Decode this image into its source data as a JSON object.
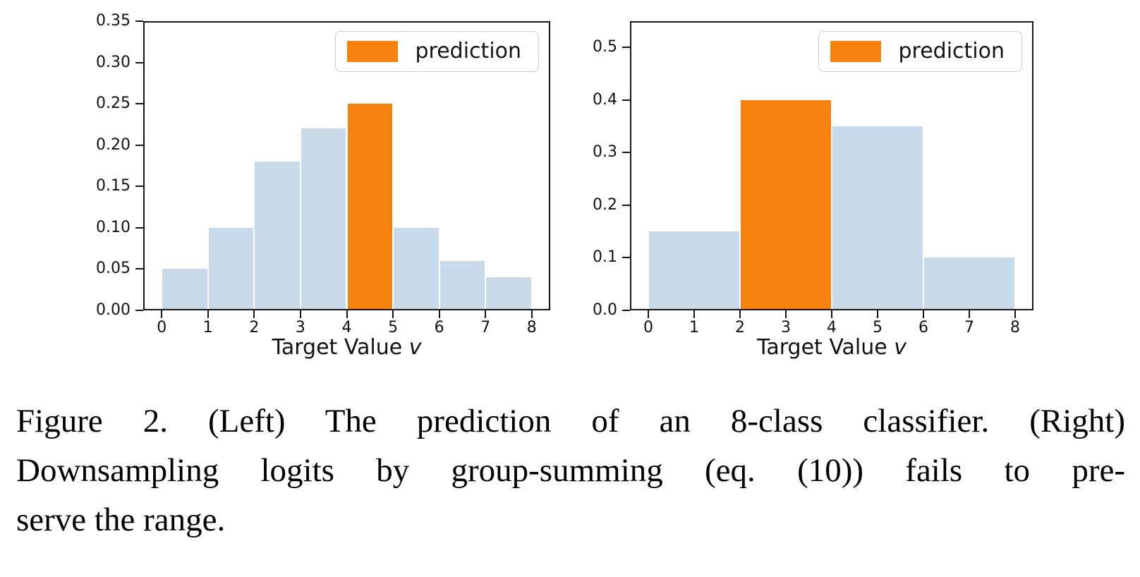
{
  "colors": {
    "bar": "#c8daea",
    "highlight": "#f5820d",
    "axis": "#151515"
  },
  "chart_data": [
    {
      "type": "bar",
      "title": "",
      "xlabel": "Target Value v",
      "xlabel_text": "Target Value ",
      "xlabel_var": "v",
      "ylabel": "",
      "legend_label": "prediction",
      "legend_position": "upper right",
      "grid": false,
      "bin_edges": [
        0,
        1,
        2,
        3,
        4,
        5,
        6,
        7,
        8
      ],
      "values": [
        0.05,
        0.1,
        0.18,
        0.22,
        0.25,
        0.1,
        0.06,
        0.04
      ],
      "highlight_index": 4,
      "xlim": [
        -0.4,
        8.4
      ],
      "ylim": [
        0,
        0.35
      ],
      "yticks": [
        {
          "v": 0.0,
          "label": "0.00"
        },
        {
          "v": 0.05,
          "label": "0.05"
        },
        {
          "v": 0.1,
          "label": "0.10"
        },
        {
          "v": 0.15,
          "label": "0.15"
        },
        {
          "v": 0.2,
          "label": "0.20"
        },
        {
          "v": 0.25,
          "label": "0.25"
        },
        {
          "v": 0.3,
          "label": "0.30"
        },
        {
          "v": 0.35,
          "label": "0.35"
        }
      ],
      "xticks": [
        {
          "v": 0,
          "label": "0"
        },
        {
          "v": 1,
          "label": "1"
        },
        {
          "v": 2,
          "label": "2"
        },
        {
          "v": 3,
          "label": "3"
        },
        {
          "v": 4,
          "label": "4"
        },
        {
          "v": 5,
          "label": "5"
        },
        {
          "v": 6,
          "label": "6"
        },
        {
          "v": 7,
          "label": "7"
        },
        {
          "v": 8,
          "label": "8"
        }
      ]
    },
    {
      "type": "bar",
      "title": "",
      "xlabel": "Target Value v",
      "xlabel_text": "Target Value ",
      "xlabel_var": "v",
      "ylabel": "",
      "legend_label": "prediction",
      "legend_position": "upper right",
      "grid": false,
      "bin_edges": [
        0,
        2,
        4,
        6,
        8
      ],
      "values": [
        0.15,
        0.4,
        0.35,
        0.1
      ],
      "highlight_index": 1,
      "xlim": [
        -0.4,
        8.4
      ],
      "ylim": [
        0,
        0.55
      ],
      "yticks": [
        {
          "v": 0.0,
          "label": "0.0"
        },
        {
          "v": 0.1,
          "label": "0.1"
        },
        {
          "v": 0.2,
          "label": "0.2"
        },
        {
          "v": 0.3,
          "label": "0.3"
        },
        {
          "v": 0.4,
          "label": "0.4"
        },
        {
          "v": 0.5,
          "label": "0.5"
        }
      ],
      "xticks": [
        {
          "v": 0,
          "label": "0"
        },
        {
          "v": 1,
          "label": "1"
        },
        {
          "v": 2,
          "label": "2"
        },
        {
          "v": 3,
          "label": "3"
        },
        {
          "v": 4,
          "label": "4"
        },
        {
          "v": 5,
          "label": "5"
        },
        {
          "v": 6,
          "label": "6"
        },
        {
          "v": 7,
          "label": "7"
        },
        {
          "v": 8,
          "label": "8"
        }
      ]
    }
  ],
  "caption": {
    "lines": [
      "Figure 2.  (Left) The prediction of an 8-class classifier.  (Right)",
      "Downsampling logits by group-summing (eq. (10)) fails to pre-",
      "serve the range."
    ]
  }
}
